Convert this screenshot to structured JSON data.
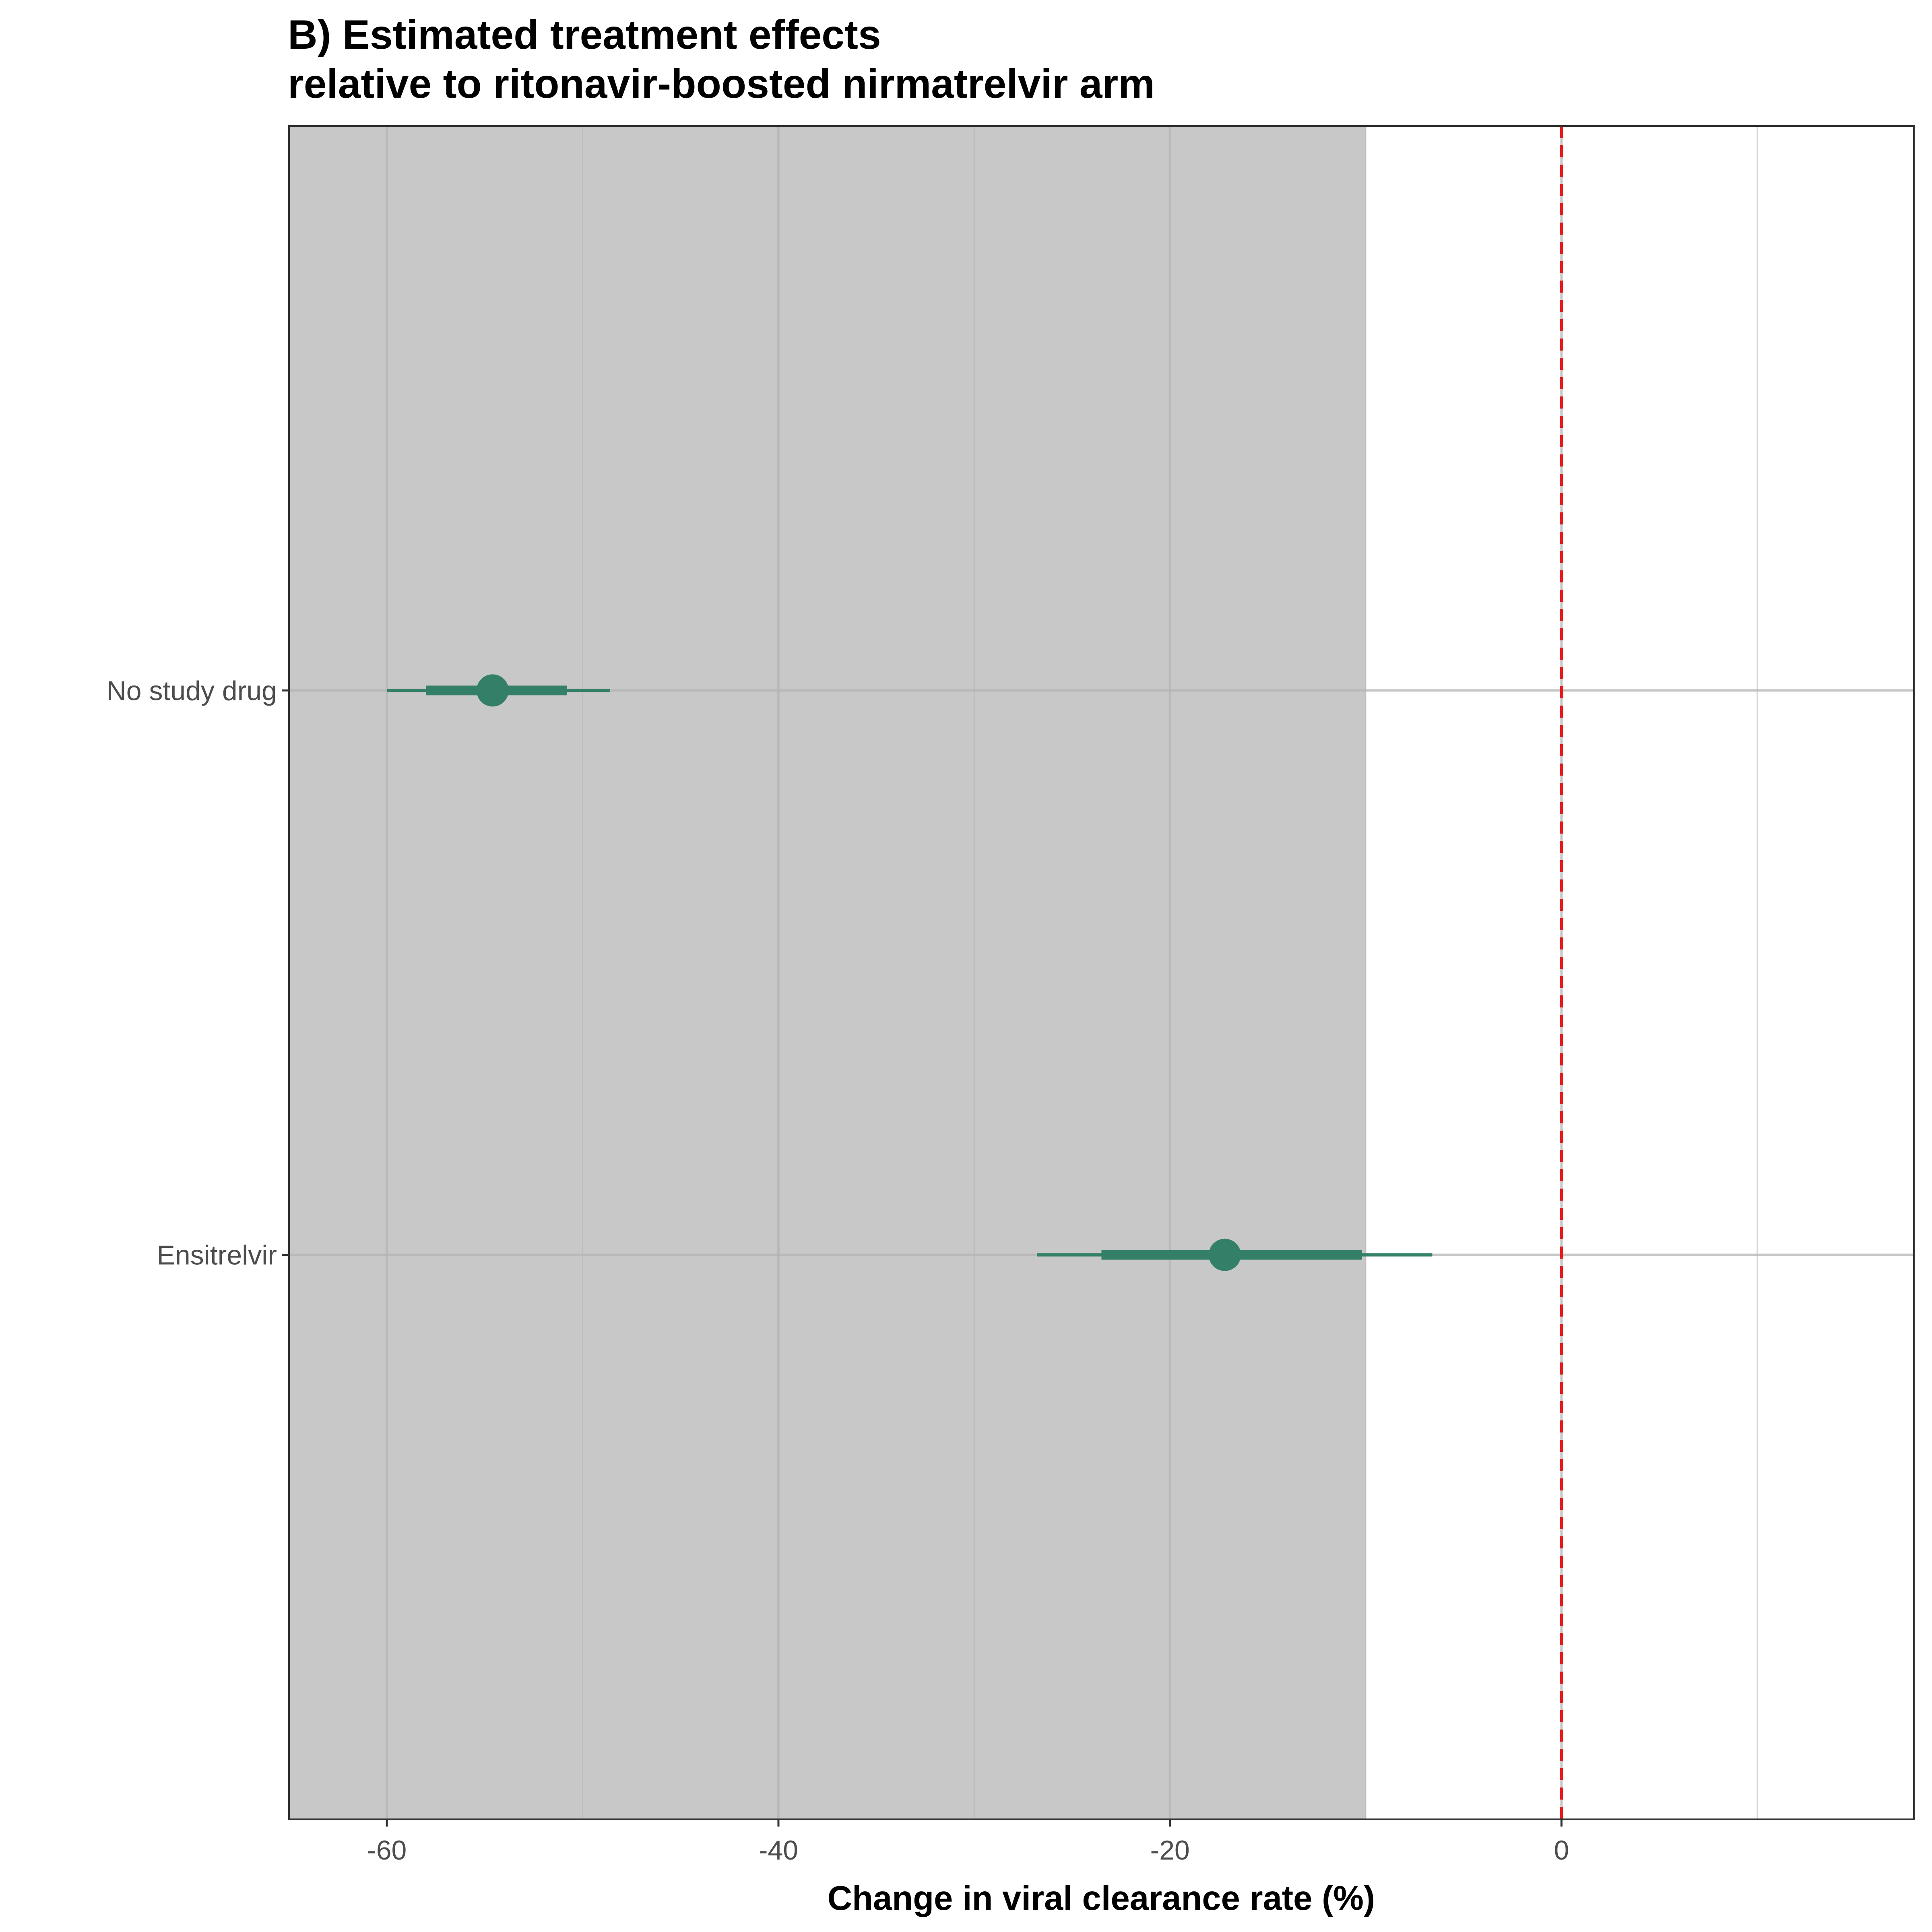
{
  "chart_data": {
    "type": "forest",
    "title": [
      "B) Estimated treatment effects",
      "relative to ritonavir-boosted nirmatrelvir arm"
    ],
    "xlabel": "Change in viral clearance rate (%)",
    "ylabel": "",
    "xlim": [
      -65,
      18
    ],
    "x_ticks": [
      -60,
      -40,
      -20,
      0
    ],
    "x_tick_labels": [
      "-60",
      "-40",
      "-20",
      "0"
    ],
    "grid": true,
    "reference_line": {
      "x": 0,
      "style": "dashed",
      "color": "#e41a1c"
    },
    "shaded_region": {
      "x_from": -65,
      "x_to": -10,
      "color": "#c8c8c8"
    },
    "point_color": "#347f68",
    "categories": [
      "Ensitrelvir",
      "No study drug"
    ],
    "estimates": [
      {
        "label": "Ensitrelvir",
        "median": -17.2,
        "ci80": [
          -23.5,
          -10.2
        ],
        "ci95": [
          -26.8,
          -6.6
        ]
      },
      {
        "label": "No study drug",
        "median": -54.6,
        "ci80": [
          -58.0,
          -50.8
        ],
        "ci95": [
          -60.0,
          -48.6
        ]
      }
    ]
  }
}
